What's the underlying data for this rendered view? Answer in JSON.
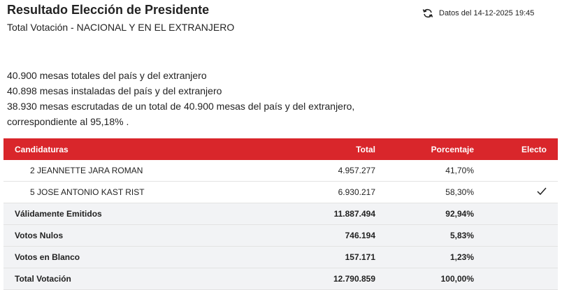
{
  "header": {
    "title": "Resultado Elección de Presidente",
    "subtitle": "Total Votación - NACIONAL Y EN EL EXTRANJERO",
    "updated": "Datos del 14-12-2025 19:45"
  },
  "summary": [
    "40.900 mesas totales del país y del extranjero",
    "40.898 mesas instaladas del país y del extranjero",
    "38.930 mesas escrutadas de un total de 40.900 mesas del país y del extranjero,",
    "correspondiente al 95,18% ."
  ],
  "table": {
    "columns": [
      "Candidaturas",
      "Total",
      "Porcentaje",
      "Electo"
    ],
    "rows": [
      [
        "2 JEANNETTE JARA ROMAN",
        "4.957.277",
        "41,70%"
      ],
      [
        "5 JOSE ANTONIO KAST RIST",
        "6.930.217",
        "58,30%"
      ]
    ],
    "totals": [
      [
        "Válidamente Emitidos",
        "11.887.494",
        "92,94%"
      ],
      [
        "Votos Nulos",
        "746.194",
        "5,83%"
      ],
      [
        "Votos en Blanco",
        "157.171",
        "1,23%"
      ],
      [
        "Total Votación",
        "12.790.859",
        "100,00%"
      ]
    ]
  }
}
